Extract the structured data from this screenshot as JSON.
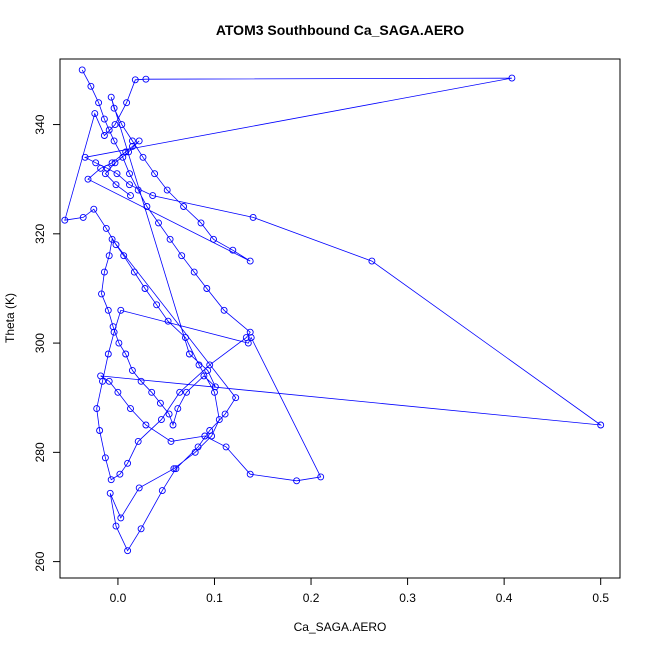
{
  "chart_data": {
    "type": "line",
    "title": "ATOM3 Southbound Ca_SAGA.AERO",
    "xlabel": "Ca_SAGA.AERO",
    "ylabel": "Theta (K)",
    "xlim": [
      -0.06,
      0.52
    ],
    "ylim": [
      257,
      352
    ],
    "xticks": [
      0.0,
      0.1,
      0.2,
      0.3,
      0.4,
      0.5
    ],
    "xtick_labels": [
      "0.0",
      "0.1",
      "0.2",
      "0.3",
      "0.4",
      "0.5"
    ],
    "yticks": [
      260,
      280,
      300,
      320,
      340
    ],
    "ytick_labels": [
      "260",
      "280",
      "300",
      "320",
      "340"
    ],
    "grid": false,
    "legend": "none",
    "series": [
      {
        "color": "#0000ff",
        "marker": "open-circle",
        "x": [
          -0.037,
          -0.028,
          -0.02,
          -0.014,
          -0.009,
          -0.004,
          0.005,
          0.012,
          0.021,
          0.03,
          0.042,
          0.054,
          0.066,
          0.079,
          0.092,
          0.11,
          0.137,
          0.133,
          0.095,
          0.064,
          0.045,
          0.021,
          0.01,
          0.002,
          -0.007,
          -0.013,
          -0.019,
          -0.022,
          -0.016,
          -0.01,
          -0.004,
          0.003,
          0.135,
          0.138,
          0.21,
          0.185,
          0.137,
          0.112,
          0.09,
          0.055,
          0.029,
          0.013,
          0.0,
          -0.009,
          -0.018,
          0.5,
          0.263,
          0.14,
          0.036,
          0.012,
          -0.001,
          -0.011,
          -0.023,
          -0.034,
          0.408,
          0.029,
          0.018,
          0.009,
          -0.003,
          -0.014,
          -0.024,
          -0.055,
          -0.036,
          -0.025,
          -0.012,
          -0.002,
          0.006,
          0.017,
          0.028,
          0.04,
          0.052,
          0.07,
          0.084,
          0.1,
          0.105,
          0.097,
          0.08,
          0.058,
          0.022,
          0.003,
          -0.008,
          -0.002,
          0.01,
          0.024,
          0.046,
          0.06,
          0.083,
          0.095,
          0.111,
          0.122,
          -0.006,
          -0.009,
          -0.014,
          -0.017,
          -0.01,
          -0.005,
          0.001,
          0.008,
          0.015,
          0.024,
          0.035,
          0.044,
          0.053,
          0.057,
          0.062,
          0.071,
          0.089,
          0.101,
          0.093,
          0.074,
          -0.007,
          -0.004,
          0.004,
          0.015,
          0.026,
          0.038,
          0.051,
          0.068,
          0.086,
          0.099,
          0.119,
          0.137,
          -0.031,
          -0.018,
          -0.006,
          0.008,
          0.015,
          0.022,
          0.011,
          -0.003,
          -0.013,
          -0.002,
          0.013
        ],
        "y": [
          350,
          347,
          344,
          341,
          339,
          337,
          334,
          331,
          328,
          325,
          322,
          319,
          316,
          313,
          310,
          306,
          302,
          301,
          296,
          291,
          286,
          282,
          278,
          276,
          275,
          279,
          284,
          288,
          293,
          298,
          302,
          306,
          300,
          301,
          275.5,
          274.8,
          276,
          281,
          283,
          282,
          285,
          288,
          291,
          293,
          294,
          285,
          315,
          323,
          327,
          329,
          331,
          332,
          333,
          334,
          348.5,
          348.3,
          348.2,
          344,
          340,
          338,
          342,
          322.5,
          323,
          324.5,
          321,
          318,
          316,
          313,
          310,
          307,
          304,
          301,
          296,
          291,
          286,
          283,
          280,
          277,
          273.5,
          268,
          272.5,
          266.5,
          262,
          266,
          273,
          277,
          281,
          284,
          287,
          290,
          319,
          316,
          313,
          309,
          306,
          303,
          300,
          298,
          295,
          293,
          291,
          289,
          287,
          285,
          288,
          291,
          294,
          292,
          295,
          298,
          345,
          343,
          340,
          337,
          334,
          331,
          328,
          325,
          322,
          319,
          317,
          315,
          330,
          332,
          333,
          335,
          336,
          337,
          335,
          333,
          331,
          329,
          327
        ]
      }
    ]
  }
}
